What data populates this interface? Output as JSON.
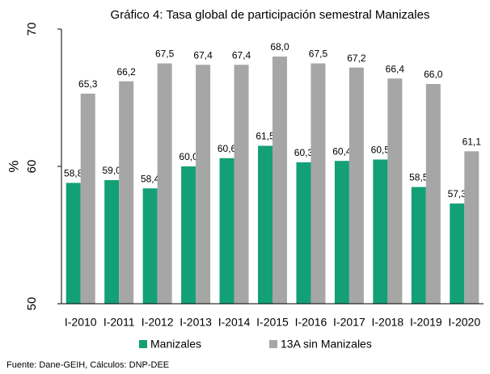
{
  "chart_data": {
    "type": "bar",
    "title": "Gráfico 4: Tasa global de participación semestral Manizales",
    "y_label": "%",
    "categories": [
      "I-2010",
      "I-2011",
      "I-2012",
      "I-2013",
      "I-2014",
      "I-2015",
      "I-2016",
      "I-2017",
      "I-2018",
      "I-2019",
      "I-2020"
    ],
    "series": [
      {
        "name": "Manizales",
        "color": "#13a077",
        "values": [
          58.8,
          59.0,
          58.4,
          60.0,
          60.6,
          61.5,
          60.3,
          60.4,
          60.5,
          58.5,
          57.3
        ],
        "value_labels": [
          "58,8",
          "59,0",
          "58,4",
          "60,0",
          "60,6",
          "61,5",
          "60,3",
          "60,4",
          "60,5",
          "58,5",
          "57,3"
        ]
      },
      {
        "name": "13A sin Manizales",
        "color": "#a6a6a6",
        "values": [
          65.3,
          66.2,
          67.5,
          67.4,
          67.4,
          68.0,
          67.5,
          67.2,
          66.4,
          66.0,
          61.1
        ],
        "value_labels": [
          "65,3",
          "66,2",
          "67,5",
          "67,4",
          "67,4",
          "68,0",
          "67,5",
          "67,2",
          "66,4",
          "66,0",
          "61,1"
        ]
      }
    ],
    "ylim": [
      50,
      70
    ],
    "yticks": [
      50,
      60,
      70
    ],
    "note": "Fuente: Dane-GEIH, Cálculos: DNP-DEE"
  }
}
